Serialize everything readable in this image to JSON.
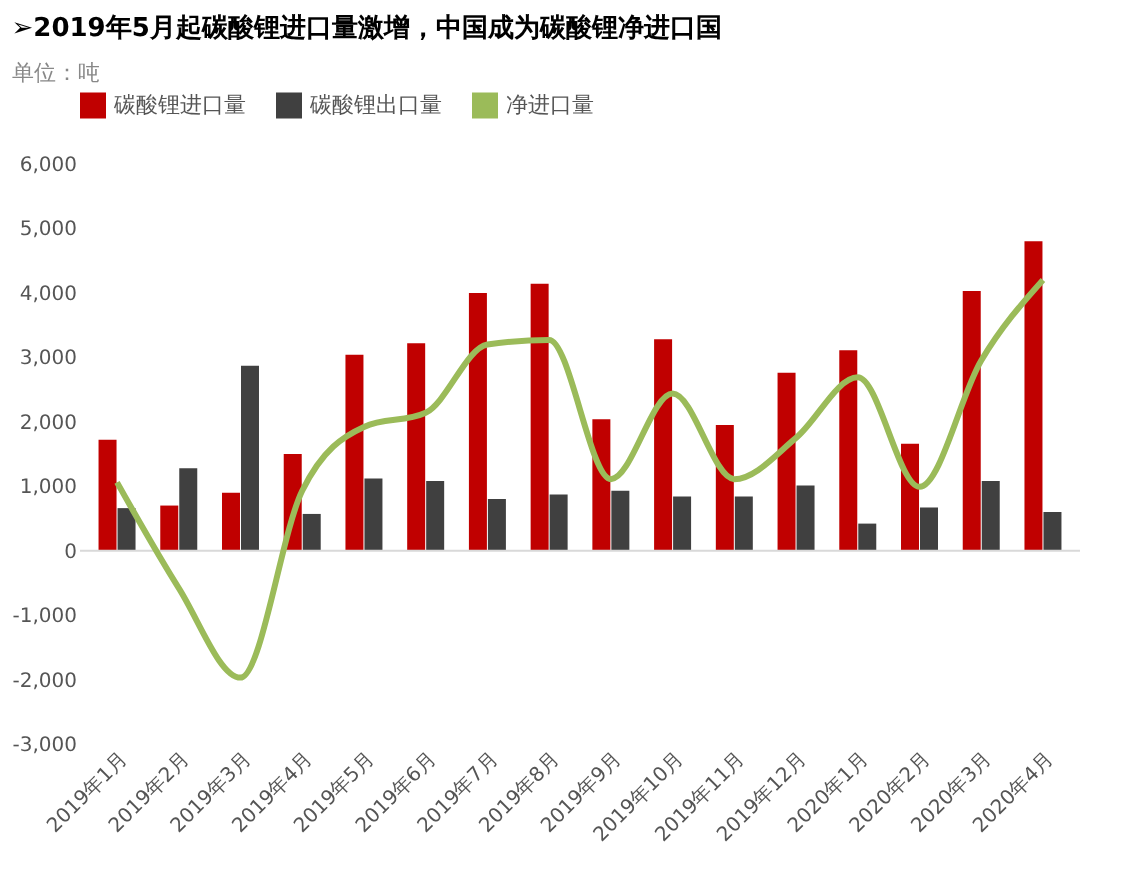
{
  "chart_data": {
    "type": "bar",
    "title": "➢2019年5月起碳酸锂进口量激增，中国成为碳酸锂净进口国",
    "ylabel": "单位：吨",
    "categories": [
      "2019年1月",
      "2019年2月",
      "2019年3月",
      "2019年4月",
      "2019年5月",
      "2019年6月",
      "2019年7月",
      "2019年8月",
      "2019年9月",
      "2019年10月",
      "2019年11月",
      "2019年12月",
      "2020年1月",
      "2020年2月",
      "2020年3月",
      "2020年4月"
    ],
    "series": [
      {
        "name": "碳酸锂进口量",
        "color": "#c00000",
        "values": [
          1720,
          700,
          900,
          1500,
          3040,
          3220,
          4000,
          4140,
          2040,
          3280,
          1950,
          2760,
          3110,
          1660,
          4030,
          4800
        ]
      },
      {
        "name": "碳酸锂出口量",
        "color": "#404040",
        "values": [
          660,
          1280,
          2870,
          570,
          1120,
          1080,
          800,
          870,
          930,
          840,
          840,
          1010,
          420,
          670,
          1080,
          600
        ]
      },
      {
        "name": "净进口量",
        "type": "line",
        "color": "#9bbb59",
        "values": [
          1060,
          -580,
          -1970,
          930,
          1920,
          2140,
          3200,
          3270,
          1110,
          2440,
          1110,
          1750,
          2690,
          990,
          2950,
          4200
        ]
      }
    ],
    "ylim": [
      -3000,
      6000
    ],
    "yticks": [
      {
        "value": -3000,
        "label": "-3,000"
      },
      {
        "value": -2000,
        "label": "-2,000"
      },
      {
        "value": -1000,
        "label": "-1,000"
      },
      0,
      {
        "value": 1000,
        "label": "1,000"
      },
      {
        "value": 2000,
        "label": "2,000"
      },
      {
        "value": 3000,
        "label": "3,000"
      },
      {
        "value": 4000,
        "label": "4,000"
      },
      {
        "value": 5000,
        "label": "5,000"
      },
      {
        "value": 6000,
        "label": "6,000"
      }
    ],
    "ref_lines": [
      {
        "axis": "y",
        "value": 0,
        "color": "#d9d9d9"
      }
    ],
    "grid": false,
    "legend": "top",
    "marker": "none",
    "line_style": "solid"
  }
}
